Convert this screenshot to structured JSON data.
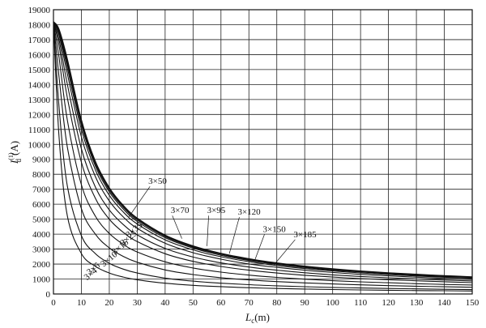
{
  "chart_data": {
    "type": "line",
    "xlabel": "L",
    "xlabel_sub": "c",
    "xlabel_unit": "(m)",
    "ylabel": "I",
    "ylabel_sub": "d",
    "ylabel_sup": "(1)",
    "ylabel_unit": "(A)",
    "xlim": [
      0,
      150
    ],
    "ylim": [
      0,
      19000
    ],
    "x_ticks": [
      0,
      10,
      20,
      30,
      40,
      50,
      60,
      70,
      80,
      90,
      100,
      110,
      120,
      130,
      140,
      150
    ],
    "y_ticks": [
      0,
      1000,
      2000,
      3000,
      4000,
      5000,
      6000,
      7000,
      8000,
      9000,
      10000,
      11000,
      12000,
      13000,
      14000,
      15000,
      16000,
      17000,
      18000,
      19000
    ],
    "grid": true,
    "x": [
      0,
      2,
      5,
      10,
      15,
      20,
      25,
      30,
      40,
      50,
      60,
      70,
      80,
      90,
      100,
      110,
      120,
      130,
      140,
      150
    ],
    "series": [
      {
        "name": "3×4",
        "values": [
          18200,
          10500,
          5200,
          2700,
          1850,
          1400,
          1130,
          950,
          720,
          580,
          490,
          420,
          370,
          330,
          300,
          270,
          250,
          230,
          215,
          200
        ]
      },
      {
        "name": "3×6",
        "values": [
          18200,
          12500,
          7200,
          3900,
          2700,
          2050,
          1660,
          1400,
          1060,
          860,
          720,
          620,
          545,
          485,
          440,
          400,
          370,
          340,
          315,
          295
        ]
      },
      {
        "name": "3×10",
        "values": [
          18200,
          14500,
          9800,
          5700,
          4000,
          3080,
          2510,
          2120,
          1610,
          1300,
          1090,
          940,
          830,
          740,
          670,
          610,
          560,
          520,
          480,
          450
        ]
      },
      {
        "name": "3×16",
        "values": [
          18200,
          15800,
          11600,
          7300,
          5200,
          4050,
          3320,
          2810,
          2150,
          1740,
          1460,
          1260,
          1110,
          990,
          890,
          810,
          750,
          690,
          640,
          600
        ]
      },
      {
        "name": "3×25",
        "values": [
          18200,
          16600,
          13100,
          8800,
          6400,
          5000,
          4120,
          3500,
          2690,
          2180,
          1840,
          1590,
          1400,
          1250,
          1130,
          1030,
          950,
          880,
          820,
          760
        ]
      },
      {
        "name": "3×35",
        "values": [
          18200,
          17000,
          14000,
          9700,
          7150,
          5620,
          4640,
          3950,
          3040,
          2470,
          2080,
          1800,
          1590,
          1420,
          1280,
          1170,
          1080,
          1000,
          930,
          870
        ]
      },
      {
        "name": "3×50",
        "values": [
          18200,
          17300,
          14700,
          10500,
          7850,
          6220,
          5150,
          4390,
          3390,
          2760,
          2330,
          2010,
          1780,
          1590,
          1440,
          1310,
          1210,
          1120,
          1040,
          970
        ]
      },
      {
        "name": "3×70",
        "values": [
          18200,
          17450,
          15100,
          11000,
          8300,
          6600,
          5480,
          4680,
          3620,
          2950,
          2490,
          2160,
          1900,
          1700,
          1540,
          1410,
          1300,
          1200,
          1120,
          1050
        ]
      },
      {
        "name": "3×95",
        "values": [
          18200,
          17550,
          15350,
          11300,
          8560,
          6830,
          5680,
          4850,
          3760,
          3070,
          2590,
          2240,
          1980,
          1770,
          1600,
          1470,
          1350,
          1250,
          1160,
          1090
        ]
      },
      {
        "name": "3×120",
        "values": [
          18200,
          17600,
          15500,
          11450,
          8700,
          6960,
          5790,
          4950,
          3840,
          3130,
          2650,
          2290,
          2020,
          1810,
          1640,
          1500,
          1380,
          1280,
          1190,
          1110
        ]
      },
      {
        "name": "3×150",
        "values": [
          18200,
          17650,
          15600,
          11550,
          8800,
          7050,
          5870,
          5020,
          3890,
          3180,
          2690,
          2330,
          2050,
          1840,
          1660,
          1520,
          1400,
          1300,
          1210,
          1130
        ]
      },
      {
        "name": "3×185",
        "values": [
          18200,
          17700,
          15700,
          11650,
          8880,
          7120,
          5930,
          5080,
          3940,
          3220,
          2720,
          2360,
          2080,
          1860,
          1690,
          1540,
          1420,
          1320,
          1230,
          1150
        ]
      }
    ],
    "labels": [
      {
        "text": "3×50",
        "x": 34,
        "y": 7350,
        "leader_to": [
          27,
          5150
        ]
      },
      {
        "text": "3×70",
        "x": 42,
        "y": 5400,
        "leader_to": [
          46,
          3700
        ]
      },
      {
        "text": "3×95",
        "x": 55,
        "y": 5400,
        "leader_to": [
          55,
          3200
        ]
      },
      {
        "text": "3×120",
        "x": 66,
        "y": 5300,
        "leader_to": [
          63,
          2700
        ]
      },
      {
        "text": "3×150",
        "x": 75,
        "y": 4150,
        "leader_to": [
          72,
          2200
        ]
      },
      {
        "text": "3×185",
        "x": 86,
        "y": 3800,
        "leader_to": [
          79,
          1950
        ]
      },
      {
        "text": "3×35",
        "x": 27,
        "y": 3750,
        "rotate": -40
      },
      {
        "text": "3×25",
        "x": 25,
        "y": 3200,
        "rotate": -40
      },
      {
        "text": "3×16",
        "x": 22,
        "y": 2600,
        "rotate": -40
      },
      {
        "text": "3×10",
        "x": 18,
        "y": 1800,
        "rotate": -40
      },
      {
        "text": "3×6",
        "x": 13,
        "y": 1250,
        "rotate": -40
      },
      {
        "text": "3×4",
        "x": 12,
        "y": 900,
        "rotate": -40
      }
    ]
  }
}
